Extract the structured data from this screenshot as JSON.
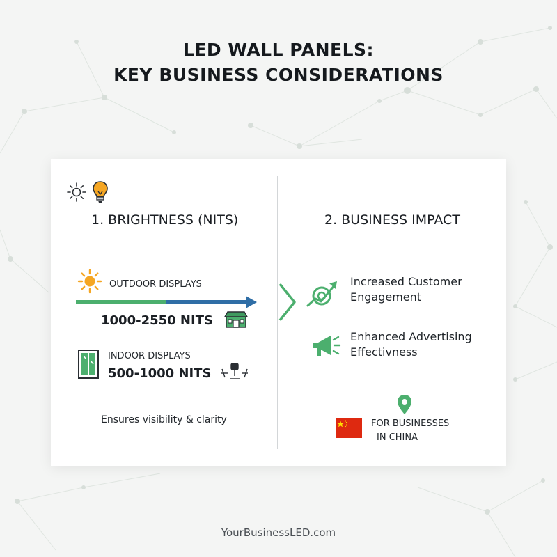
{
  "title": {
    "line1": "LED WALL PANELS:",
    "line2": "KEY BUSINESS CONSIDERATIONS"
  },
  "brightness": {
    "heading": "1. BRIGHTNESS (NITS)",
    "header_icons": [
      "sun-outline-icon",
      "lightbulb-icon"
    ],
    "outdoor": {
      "label": "OUTDOOR DISPLAYS",
      "value": "1000-2550 NITS",
      "icons": [
        "sun-icon",
        "storefront-icon"
      ]
    },
    "indoor": {
      "label": "INDOOR DISPLAYS",
      "value": "500-1000 NITS",
      "icons": [
        "window-icon",
        "office-chairs-icon"
      ]
    },
    "note": "Ensures visibility & clarity"
  },
  "impact": {
    "heading": "2. BUSINESS IMPACT",
    "engagement": {
      "line1": "Increased Customer",
      "line2": "Engagement",
      "icon": "target-growth-icon"
    },
    "advertising": {
      "line1": "Enhanced Advertising",
      "line2": "Effectivness",
      "icon": "megaphone-icon"
    },
    "china": {
      "line1": "FOR BUSINESSES",
      "line2": "IN CHINA",
      "icons": [
        "location-pin-icon",
        "china-flag-icon"
      ]
    }
  },
  "colors": {
    "green": "#4caf6e",
    "blue": "#2f6ea6",
    "orange": "#f5a623",
    "flag_red": "#de2910",
    "flag_yellow": "#ffde00"
  },
  "footer": "YourBusinessLED.com"
}
